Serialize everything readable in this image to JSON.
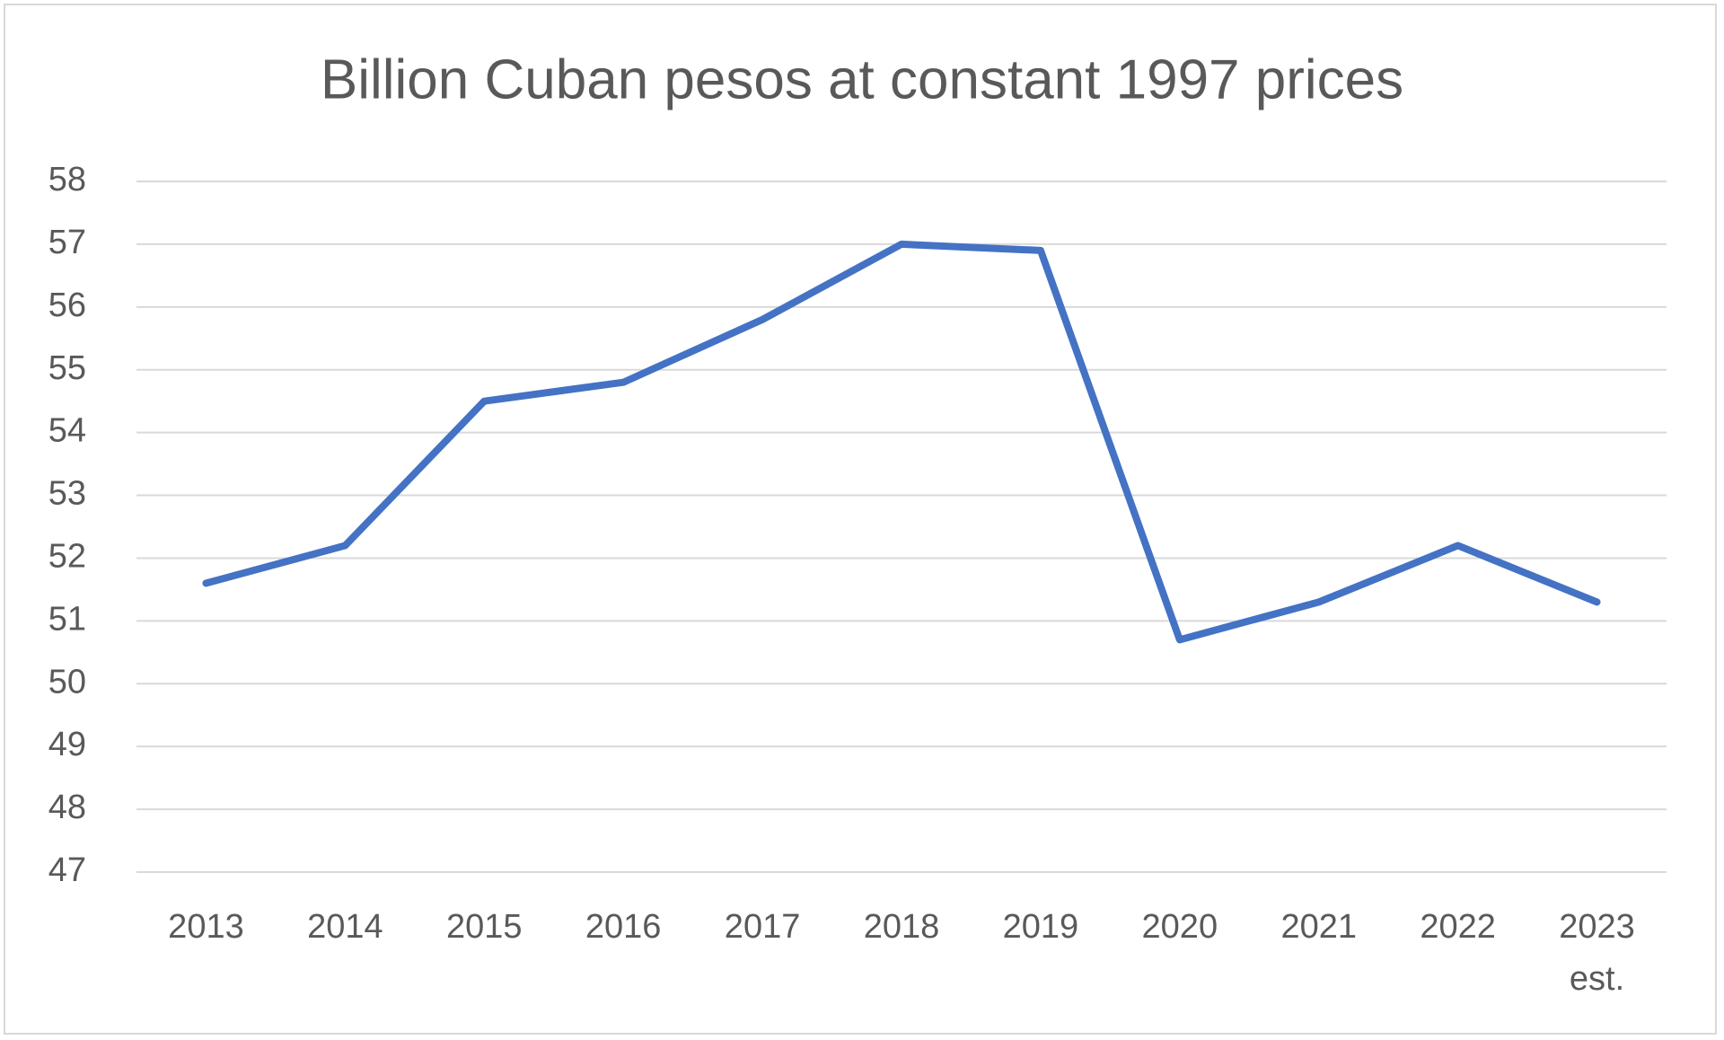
{
  "chart_data": {
    "type": "line",
    "title": "Billion Cuban pesos at constant 1997 prices",
    "categories": [
      "2013",
      "2014",
      "2015",
      "2016",
      "2017",
      "2018",
      "2019",
      "2020",
      "2021",
      "2022",
      "2023 est."
    ],
    "series": [
      {
        "color": "#4472c4",
        "values": [
          51.6,
          52.2,
          54.5,
          54.8,
          55.8,
          57.0,
          56.9,
          50.7,
          51.3,
          52.2,
          51.3
        ]
      }
    ],
    "ylim": [
      47,
      58
    ],
    "yticks": [
      47,
      48,
      49,
      50,
      51,
      52,
      53,
      54,
      55,
      56,
      57,
      58
    ],
    "grid": true
  }
}
